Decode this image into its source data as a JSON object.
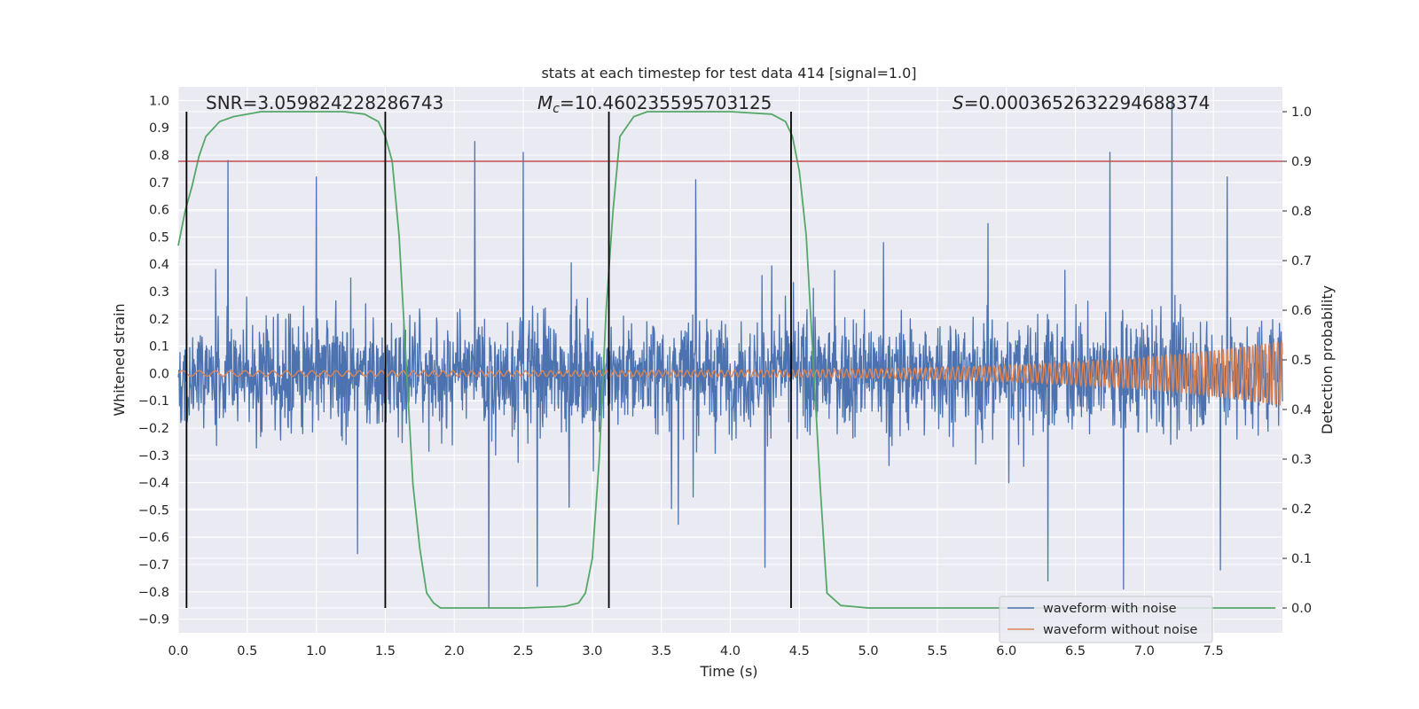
{
  "chart_data": {
    "type": "line",
    "title": "stats at each timestep for test data 414 [signal=1.0]",
    "xlabel": "Time (s)",
    "ylabel": "Whitened strain",
    "y2label": "Detection probability",
    "xlim": [
      0.0,
      8.0
    ],
    "ylim": [
      -0.95,
      1.05
    ],
    "y2lim": [
      -0.05,
      1.05
    ],
    "xticks": [
      "0.0",
      "0.5",
      "1.0",
      "1.5",
      "2.0",
      "2.5",
      "3.0",
      "3.5",
      "4.0",
      "4.5",
      "5.0",
      "5.5",
      "6.0",
      "6.5",
      "7.0",
      "7.5"
    ],
    "yticks": [
      "-0.9",
      "-0.8",
      "-0.7",
      "-0.6",
      "-0.5",
      "-0.4",
      "-0.3",
      "-0.2",
      "-0.1",
      "0.0",
      "0.1",
      "0.2",
      "0.3",
      "0.4",
      "0.5",
      "0.6",
      "0.7",
      "0.8",
      "0.9",
      "1.0"
    ],
    "y2ticks": [
      "0.0",
      "0.1",
      "0.2",
      "0.3",
      "0.4",
      "0.5",
      "0.6",
      "0.7",
      "0.8",
      "0.9",
      "1.0"
    ],
    "grid": true,
    "legend_position": "bottom-right",
    "annotations": [
      {
        "prefix": "SNR",
        "italic": false,
        "subscript": "",
        "value": "=3.059824228286743"
      },
      {
        "prefix": "M",
        "italic": true,
        "subscript": "c",
        "value": "=10.460235595703125"
      },
      {
        "prefix": "S",
        "italic": true,
        "subscript": "",
        "value": "=0.0003652632294688374"
      }
    ],
    "colors": {
      "noise": "#4c72b0",
      "clean": "#dd8452",
      "probability": "#55a868",
      "threshold": "#c44e52",
      "vlines": "#000000",
      "background": "#eaeaf2",
      "grid": "#ffffff"
    },
    "series": [
      {
        "name": "waveform with noise",
        "axis": "left",
        "style": "dense noisy time series",
        "t_range": [
          0.0,
          8.0
        ],
        "band": [
          -0.3,
          0.45
        ],
        "peaks": [
          [
            0.36,
            0.78
          ],
          [
            1.0,
            0.72
          ],
          [
            2.15,
            0.85
          ],
          [
            2.5,
            0.81
          ],
          [
            3.75,
            0.71
          ],
          [
            6.75,
            0.81
          ],
          [
            7.2,
            1.0
          ],
          [
            7.6,
            0.72
          ]
        ],
        "troughs": [
          [
            1.3,
            -0.66
          ],
          [
            2.25,
            -0.86
          ],
          [
            2.6,
            -0.78
          ],
          [
            4.25,
            -0.71
          ],
          [
            6.3,
            -0.76
          ],
          [
            6.85,
            -0.79
          ],
          [
            7.55,
            -0.72
          ]
        ]
      },
      {
        "name": "waveform without noise",
        "axis": "left",
        "style": "chirp, amplitude growing with time",
        "t_range": [
          0.0,
          8.0
        ],
        "amplitude_start": 0.01,
        "amplitude_end": 0.12
      },
      {
        "name": "",
        "axis": "right",
        "style": "detection probability",
        "x": [
          0.0,
          0.05,
          0.1,
          0.15,
          0.2,
          0.3,
          0.4,
          0.6,
          0.8,
          1.0,
          1.2,
          1.35,
          1.45,
          1.5,
          1.55,
          1.6,
          1.65,
          1.7,
          1.75,
          1.8,
          1.85,
          1.9,
          2.0,
          2.5,
          2.8,
          2.9,
          2.95,
          3.0,
          3.05,
          3.1,
          3.15,
          3.2,
          3.3,
          3.4,
          3.6,
          4.0,
          4.3,
          4.4,
          4.45,
          4.5,
          4.55,
          4.6,
          4.65,
          4.7,
          4.8,
          5.0,
          7.95
        ],
        "values": [
          0.73,
          0.8,
          0.85,
          0.91,
          0.95,
          0.98,
          0.99,
          1.0,
          1.0,
          1.0,
          1.0,
          0.995,
          0.98,
          0.95,
          0.9,
          0.75,
          0.5,
          0.25,
          0.12,
          0.03,
          0.01,
          0.0,
          0.0,
          0.0,
          0.003,
          0.01,
          0.03,
          0.1,
          0.3,
          0.6,
          0.8,
          0.95,
          0.99,
          1.0,
          1.0,
          1.0,
          0.995,
          0.98,
          0.95,
          0.88,
          0.75,
          0.5,
          0.25,
          0.03,
          0.005,
          0.0,
          0.0
        ]
      }
    ],
    "threshold_line": {
      "axis": "right",
      "value": 0.9
    },
    "vertical_lines": [
      0.06,
      1.5,
      3.12,
      4.44
    ],
    "legend": [
      "waveform with noise",
      "waveform without noise"
    ]
  }
}
